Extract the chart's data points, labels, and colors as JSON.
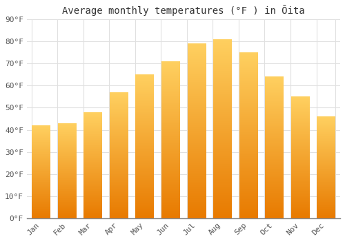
{
  "title": "Average monthly temperatures (°F ) in Ōita",
  "months": [
    "Jan",
    "Feb",
    "Mar",
    "Apr",
    "May",
    "Jun",
    "Jul",
    "Aug",
    "Sep",
    "Oct",
    "Nov",
    "Dec"
  ],
  "values": [
    42,
    43,
    48,
    57,
    65,
    71,
    79,
    81,
    75,
    64,
    55,
    46
  ],
  "bar_color_bottom": "#E87A00",
  "bar_color_top": "#FFD060",
  "bar_color_mid": "#FFA820",
  "ylim": [
    0,
    90
  ],
  "yticks": [
    0,
    10,
    20,
    30,
    40,
    50,
    60,
    70,
    80,
    90
  ],
  "ytick_labels": [
    "0°F",
    "10°F",
    "20°F",
    "30°F",
    "40°F",
    "50°F",
    "60°F",
    "70°F",
    "80°F",
    "90°F"
  ],
  "background_color": "#FFFFFF",
  "grid_color": "#E0E0E0",
  "title_fontsize": 10,
  "tick_fontsize": 8,
  "font_family": "monospace"
}
